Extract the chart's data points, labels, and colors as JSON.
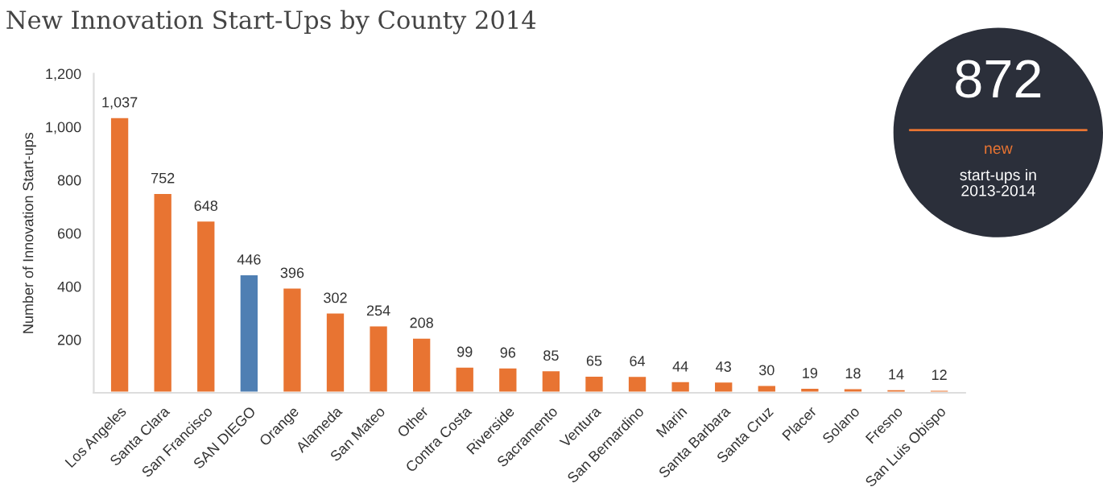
{
  "chart_data": {
    "type": "bar",
    "title": "New Innovation Start-Ups by County 2014",
    "ylabel": "Number of Innovation Start-ups",
    "categories": [
      "Los Angeles",
      "Santa Clara",
      "San Francisco",
      "SAN DIEGO",
      "Orange",
      "Alameda",
      "San Mateo",
      "Other",
      "Contra Costa",
      "Riverside",
      "Sacramento",
      "Ventura",
      "San Bernardino",
      "Marin",
      "Santa Barbara",
      "Santa Cruz",
      "Placer",
      "Solano",
      "Fresno",
      "San Luis Obispo"
    ],
    "values": [
      1037,
      752,
      648,
      446,
      396,
      302,
      254,
      208,
      99,
      96,
      85,
      65,
      64,
      44,
      43,
      30,
      19,
      18,
      14,
      12
    ],
    "value_labels": [
      "1,037",
      "752",
      "648",
      "446",
      "396",
      "302",
      "254",
      "208",
      "99",
      "96",
      "85",
      "65",
      "64",
      "44",
      "43",
      "30",
      "19",
      "18",
      "14",
      "12"
    ],
    "colors": [
      "#e87432",
      "#e87432",
      "#e87432",
      "#4f7fb3",
      "#e87432",
      "#e87432",
      "#e87432",
      "#e87432",
      "#e87432",
      "#e87432",
      "#e87432",
      "#e87432",
      "#e87432",
      "#e87432",
      "#e87432",
      "#e87432",
      "#e87432",
      "#e87432",
      "#e87432",
      "#e87432"
    ],
    "ylim": [
      0,
      1200
    ],
    "yticks": [
      {
        "value": 0,
        "label": null
      },
      {
        "value": 200,
        "label": "200"
      },
      {
        "value": 400,
        "label": "400"
      },
      {
        "value": 600,
        "label": "600"
      },
      {
        "value": 800,
        "label": "800"
      },
      {
        "value": 1000,
        "label": "1,000"
      },
      {
        "value": 1200,
        "label": "1,200"
      }
    ],
    "grid": false,
    "annotations": [
      "872",
      "new",
      "start-ups in\n2013-2014"
    ]
  }
}
